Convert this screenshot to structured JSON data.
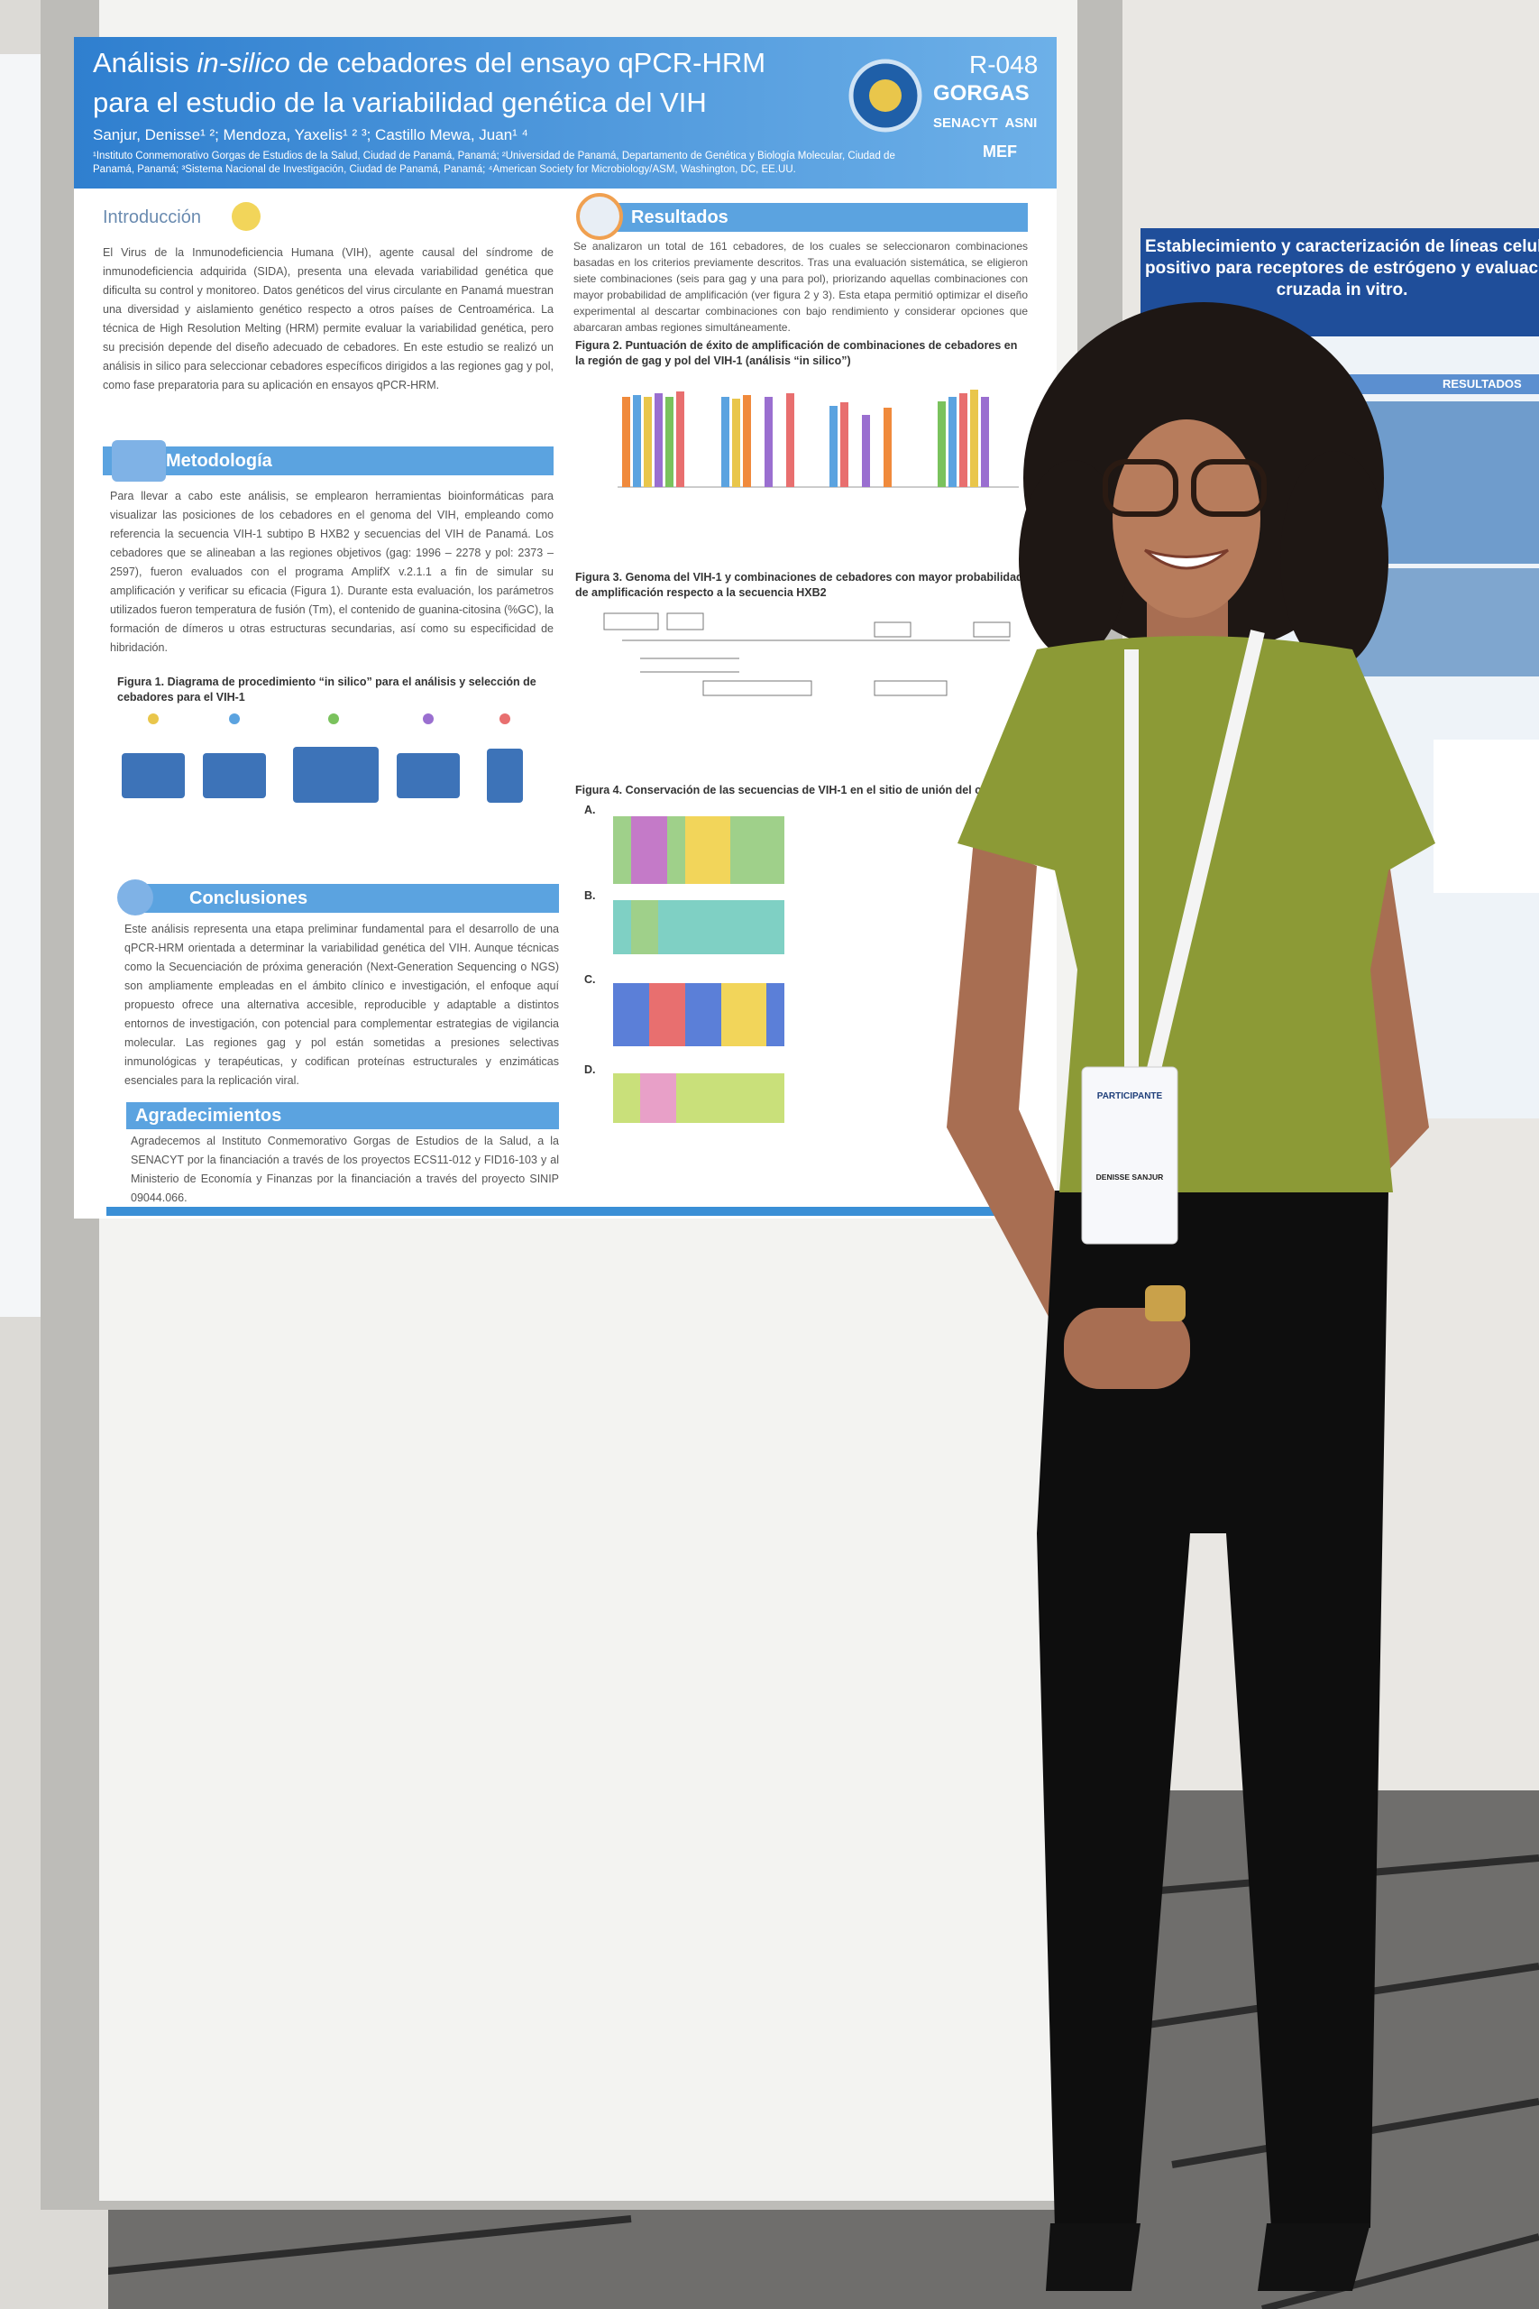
{
  "poster": {
    "title_start": "Análisis ",
    "title_italic": "in-silico",
    "title_end": " de cebadores del ensayo qPCR-HRM",
    "title_line2": "para el estudio de la variabilidad genética del VIH",
    "authors": "Sanjur, Denisse¹ ²; Mendoza, Yaxelis¹ ² ³; Castillo Mewa, Juan¹ ⁴",
    "affiliations": "¹Instituto Conmemorativo Gorgas de Estudios de la Salud, Ciudad de Panamá, Panamá; ²Universidad de Panamá, Departamento de Genética y Biología Molecular, Ciudad de Panamá, Panamá; ³Sistema Nacional de Investigación, Ciudad de Panamá, Panamá; ⁴American Society for Microbiology/ASM, Washington, DC, EE.UU.",
    "code": "R-048",
    "logo": "GORGAS",
    "sponsors": "SENACYT  ASNI",
    "ministry": "MEF",
    "introduccion": {
      "heading": "Introducción",
      "text": "El Virus de la Inmunodeficiencia Humana (VIH), agente causal del síndrome de inmunodeficiencia adquirida (SIDA), presenta una elevada variabilidad genética que dificulta su control y monitoreo. Datos genéticos del virus circulante en Panamá muestran una diversidad y aislamiento genético respecto a otros países de Centroamérica. La técnica de High Resolution Melting (HRM) permite evaluar la variabilidad genética, pero su precisión depende del diseño adecuado de cebadores. En este estudio se realizó un análisis in silico para seleccionar cebadores específicos dirigidos a las regiones gag y pol, como fase preparatoria para su aplicación en ensayos qPCR-HRM."
    },
    "metodologia": {
      "heading": "Metodología",
      "text": "Para llevar a cabo este análisis, se emplearon herramientas bioinformáticas para visualizar las posiciones de los cebadores en el genoma del VIH, empleando como referencia la secuencia VIH-1 subtipo B HXB2 y secuencias del VIH de Panamá. Los cebadores que se alineaban a las regiones objetivos (gag: 1996 – 2278 y pol: 2373 – 2597), fueron evaluados con el programa AmplifX v.2.1.1 a fin de simular su amplificación y verificar su eficacia (Figura 1). Durante esta evaluación, los parámetros utilizados fueron temperatura de fusión (Tm), el contenido de guanina-citosina (%GC), la formación de dímeros u otras estructuras secundarias, así como su especificidad de hibridación.",
      "figure_caption": "Figura 1. Diagrama de procedimiento “in silico” para el análisis y selección de cebadores para el VIH-1"
    },
    "conclusiones": {
      "heading": "Conclusiones",
      "text": "Este análisis representa una etapa preliminar fundamental para el desarrollo de una qPCR-HRM orientada a determinar la variabilidad genética del VIH. Aunque técnicas como la Secuenciación de próxima generación (Next-Generation Sequencing o NGS) son ampliamente empleadas en el ámbito clínico e investigación, el enfoque aquí propuesto ofrece una alternativa accesible, reproducible y adaptable a distintos entornos de investigación, con potencial para complementar estrategias de vigilancia molecular. Las regiones gag y pol están sometidas a presiones selectivas inmunológicas y terapéuticas, y codifican proteínas estructurales y enzimáticas esenciales para la replicación viral."
    },
    "agradecimientos": {
      "heading": "Agradecimientos",
      "text": "Agradecemos al Instituto Conmemorativo Gorgas de Estudios de la Salud, a la SENACYT por la financiación a través de los proyectos ECS11-012 y FID16-103 y al Ministerio de Economía y Finanzas por la financiación a través del proyecto SINIP 09044.066."
    },
    "resultados": {
      "heading": "Resultados",
      "text": "Se analizaron un total de 161 cebadores, de los cuales se seleccionaron combinaciones basadas en los criterios previamente descritos. Tras una evaluación sistemática, se eligieron siete combinaciones (seis para gag y una para pol), priorizando aquellas combinaciones con mayor probabilidad de amplificación (ver figura 2 y 3). Esta etapa permitió optimizar el diseño experimental al descartar combinaciones con bajo rendimiento y considerar opciones que abarcaran ambas regiones simultáneamente.",
      "figure2_caption": "Figura 2. Puntuación de éxito de amplificación de combinaciones de cebadores en la región de gag y pol del VIH-1 (análisis “in silico”)",
      "figure3_caption": "Figura 3. Genoma del VIH-1 y combinaciones de cebadores con mayor probabilidad de amplificación respecto a la secuencia HXB2",
      "figure4_caption": "Figura 4. Conservación de las secuencias de VIH-1 en el sitio de unión del cebador",
      "panels": [
        "A.",
        "B.",
        "C.",
        "D."
      ]
    }
  },
  "side_poster": {
    "title_lines": [
      "Establecimiento y caracterización de líneas celulares",
      "positivo para receptores de estrógeno y evaluación",
      "cruzada in vitro."
    ],
    "results": "RESULTADOS"
  },
  "badge": {
    "role": "PARTICIPANTE",
    "name": "DENISSE SANJUR"
  }
}
